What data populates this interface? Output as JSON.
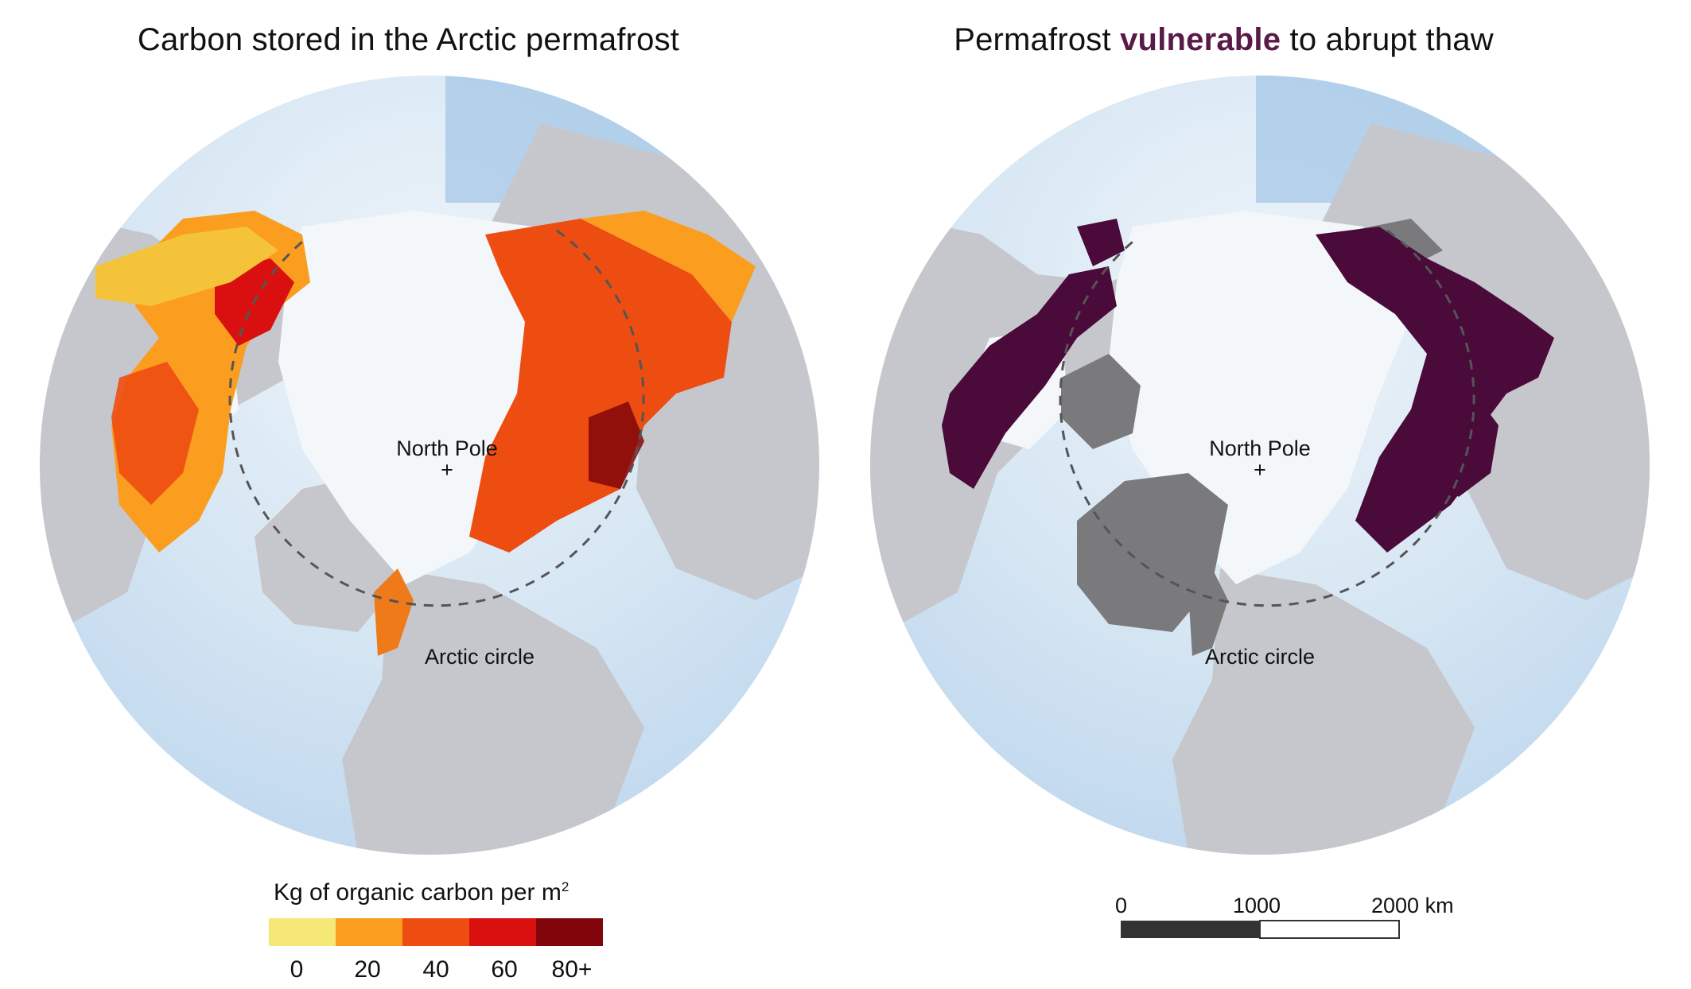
{
  "left_map": {
    "title": "Carbon stored in the Arctic permafrost",
    "labels": {
      "pole": "North Pole",
      "arctic_circle": "Arctic circle"
    },
    "legend": {
      "title": "Kg of organic carbon per m",
      "title_superscript": "2",
      "bins": [
        {
          "color": "#f5e876"
        },
        {
          "color": "#fb9d1f"
        },
        {
          "color": "#ee4d12"
        },
        {
          "color": "#da1010"
        },
        {
          "color": "#80060c"
        }
      ],
      "ticks": [
        "0",
        "20",
        "40",
        "60",
        "80+"
      ]
    }
  },
  "right_map": {
    "title_prefix": "Permafrost ",
    "title_highlight": "vulnerable",
    "title_suffix": " to abrupt thaw",
    "highlight_color": "#5a1a48",
    "labels": {
      "pole": "North Pole",
      "arctic_circle": "Arctic circle"
    },
    "vulnerable_color": "#4a0a3a",
    "other_permafrost_color": "#6e6e70"
  },
  "scale_bar": {
    "ticks": [
      "0",
      "1000",
      "2000 km"
    ]
  },
  "colors": {
    "ocean_light": "#dde9f4",
    "ocean_deep": "#a9c9e8",
    "land": "#c6c7cc",
    "ice": "#f5f7f9"
  }
}
